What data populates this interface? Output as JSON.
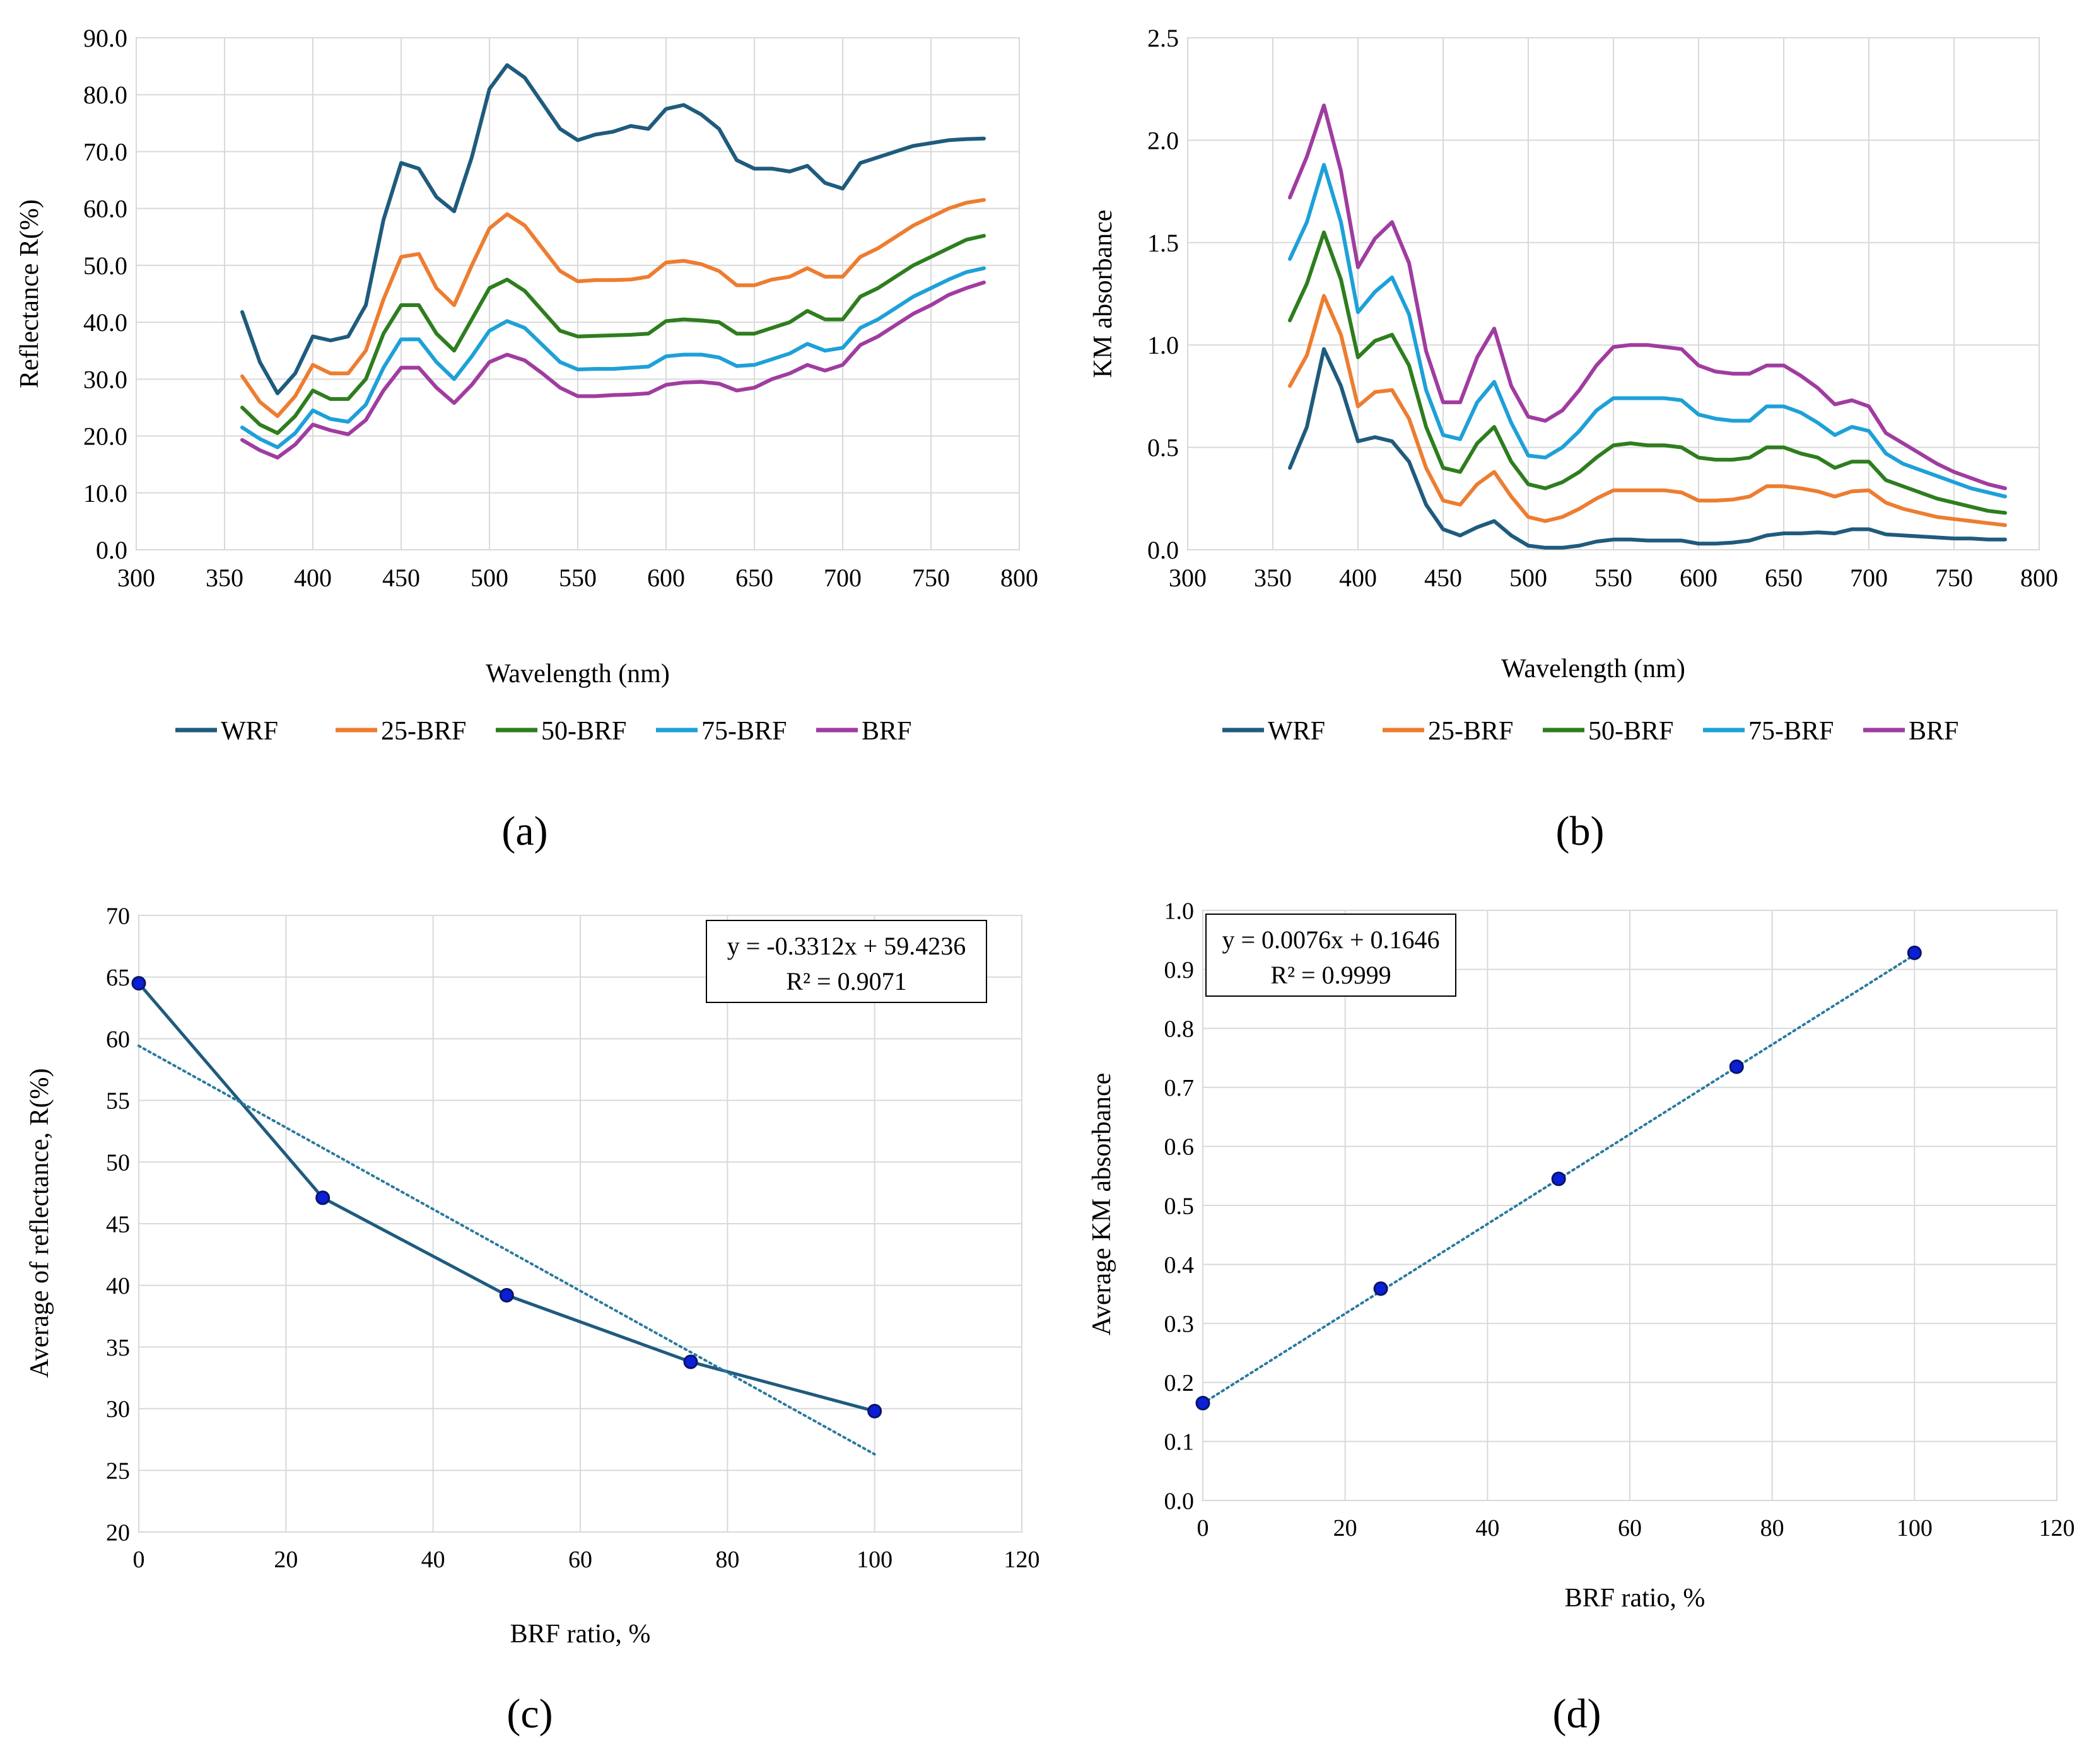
{
  "colors": {
    "WRF": "#1f5b7d",
    "25-BRF": "#ed7d31",
    "50-BRF": "#2e7d1e",
    "75-BRF": "#1ea0d8",
    "BRF": "#a03ca0",
    "marker_fill": "#0b1fd6",
    "marker_stroke": "#0a1466",
    "trend": "#2a7aa0",
    "grid": "#d9d9d9"
  },
  "chart_data": [
    {
      "id": "a",
      "type": "line",
      "panel_label": "(a)",
      "xlabel": "Wavelength (nm)",
      "ylabel": "Reflectance R(%)",
      "xlim": [
        300,
        800
      ],
      "ylim": [
        0,
        90
      ],
      "xticks": [
        300,
        350,
        400,
        450,
        500,
        550,
        600,
        650,
        700,
        750,
        800
      ],
      "yticks": [
        0,
        10,
        20,
        30,
        40,
        50,
        60,
        70,
        80,
        90
      ],
      "ytick_labels": [
        "0.0",
        "10.0",
        "20.0",
        "30.0",
        "40.0",
        "50.0",
        "60.0",
        "70.0",
        "80.0",
        "90.0"
      ],
      "legend": "bottom",
      "x": [
        360,
        370,
        380,
        390,
        400,
        410,
        420,
        430,
        440,
        450,
        460,
        470,
        480,
        490,
        500,
        510,
        520,
        530,
        540,
        550,
        560,
        570,
        580,
        590,
        600,
        610,
        620,
        630,
        640,
        650,
        660,
        670,
        680,
        690,
        700,
        710,
        720,
        730,
        740,
        750,
        760,
        770,
        780
      ],
      "series": [
        {
          "name": "WRF",
          "values": [
            41.8,
            33,
            27.5,
            31,
            37.5,
            36.8,
            37.5,
            43,
            58,
            68,
            67,
            62,
            59.5,
            69,
            81,
            85.2,
            83,
            78.5,
            74,
            72,
            73,
            73.5,
            74.5,
            74,
            77.5,
            78.2,
            76.5,
            74,
            68.5,
            67,
            67,
            66.5,
            67.5,
            64.5,
            63.5,
            68,
            69,
            70,
            71,
            71.5,
            72,
            72.2,
            72.3
          ]
        },
        {
          "name": "25-BRF",
          "values": [
            30.5,
            26,
            23.5,
            27,
            32.5,
            31,
            31,
            35,
            44,
            51.5,
            52,
            46,
            43,
            50,
            56.5,
            59,
            57,
            53,
            49,
            47.2,
            47.4,
            47.4,
            47.5,
            48,
            50.5,
            50.8,
            50.2,
            49,
            46.5,
            46.5,
            47.5,
            48,
            49.5,
            48,
            48,
            51.5,
            53,
            55,
            57,
            58.5,
            60,
            61,
            61.5
          ]
        },
        {
          "name": "50-BRF",
          "values": [
            25,
            22,
            20.5,
            23.5,
            28,
            26.5,
            26.5,
            30,
            38,
            43,
            43,
            38,
            35,
            40.5,
            46,
            47.5,
            45.5,
            42,
            38.5,
            37.5,
            37.6,
            37.7,
            37.8,
            38,
            40.2,
            40.5,
            40.3,
            40,
            38,
            38,
            39,
            40,
            42,
            40.5,
            40.5,
            44.5,
            46,
            48,
            50,
            51.5,
            53,
            54.5,
            55.2
          ]
        },
        {
          "name": "75-BRF",
          "values": [
            21.5,
            19.5,
            18,
            20.5,
            24.5,
            23,
            22.5,
            25.5,
            32,
            37,
            37,
            33,
            30,
            34,
            38.5,
            40.2,
            39,
            36,
            33,
            31.7,
            31.8,
            31.8,
            32,
            32.2,
            34,
            34.3,
            34.3,
            33.8,
            32.3,
            32.5,
            33.5,
            34.5,
            36.2,
            35,
            35.5,
            39,
            40.5,
            42.5,
            44.5,
            46,
            47.5,
            48.8,
            49.5
          ]
        },
        {
          "name": "BRF",
          "values": [
            19.3,
            17.5,
            16.2,
            18.5,
            22,
            21,
            20.3,
            22.8,
            28,
            32,
            32,
            28.5,
            25.8,
            29,
            33,
            34.3,
            33.3,
            31,
            28.5,
            27,
            27,
            27.2,
            27.3,
            27.5,
            29,
            29.4,
            29.5,
            29.2,
            28,
            28.5,
            30,
            31,
            32.5,
            31.5,
            32.5,
            36,
            37.5,
            39.5,
            41.5,
            43,
            44.8,
            46,
            47
          ]
        }
      ]
    },
    {
      "id": "b",
      "type": "line",
      "panel_label": "(b)",
      "xlabel": "Wavelength (nm)",
      "ylabel": "KM absorbance",
      "xlim": [
        300,
        800
      ],
      "ylim": [
        0,
        2.5
      ],
      "xticks": [
        300,
        350,
        400,
        450,
        500,
        550,
        600,
        650,
        700,
        750,
        800
      ],
      "yticks": [
        0,
        0.5,
        1,
        1.5,
        2,
        2.5
      ],
      "ytick_labels": [
        "0.0",
        "0.5",
        "1.0",
        "1.5",
        "2.0",
        "2.5"
      ],
      "legend": "bottom",
      "x": [
        360,
        370,
        380,
        390,
        400,
        410,
        420,
        430,
        440,
        450,
        460,
        470,
        480,
        490,
        500,
        510,
        520,
        530,
        540,
        550,
        560,
        570,
        580,
        590,
        600,
        610,
        620,
        630,
        640,
        650,
        660,
        670,
        680,
        690,
        700,
        710,
        720,
        730,
        740,
        750,
        760,
        770,
        780
      ],
      "series": [
        {
          "name": "WRF",
          "values": [
            0.4,
            0.6,
            0.98,
            0.8,
            0.53,
            0.55,
            0.53,
            0.43,
            0.22,
            0.1,
            0.07,
            0.11,
            0.14,
            0.07,
            0.02,
            0.01,
            0.01,
            0.02,
            0.04,
            0.05,
            0.05,
            0.045,
            0.045,
            0.045,
            0.03,
            0.03,
            0.035,
            0.045,
            0.07,
            0.08,
            0.08,
            0.085,
            0.08,
            0.1,
            0.1,
            0.075,
            0.07,
            0.065,
            0.06,
            0.055,
            0.055,
            0.05,
            0.05
          ]
        },
        {
          "name": "25-BRF",
          "values": [
            0.8,
            0.95,
            1.24,
            1.05,
            0.7,
            0.77,
            0.78,
            0.64,
            0.4,
            0.24,
            0.22,
            0.32,
            0.38,
            0.26,
            0.16,
            0.14,
            0.16,
            0.2,
            0.25,
            0.29,
            0.29,
            0.29,
            0.29,
            0.28,
            0.24,
            0.24,
            0.245,
            0.26,
            0.31,
            0.31,
            0.3,
            0.285,
            0.26,
            0.285,
            0.29,
            0.23,
            0.2,
            0.18,
            0.16,
            0.15,
            0.14,
            0.13,
            0.12
          ]
        },
        {
          "name": "50-BRF",
          "values": [
            1.12,
            1.3,
            1.55,
            1.32,
            0.94,
            1.02,
            1.05,
            0.9,
            0.6,
            0.4,
            0.38,
            0.52,
            0.6,
            0.43,
            0.32,
            0.3,
            0.33,
            0.38,
            0.45,
            0.51,
            0.52,
            0.51,
            0.51,
            0.5,
            0.45,
            0.44,
            0.44,
            0.45,
            0.5,
            0.5,
            0.47,
            0.45,
            0.4,
            0.43,
            0.43,
            0.34,
            0.31,
            0.28,
            0.25,
            0.23,
            0.21,
            0.19,
            0.18
          ]
        },
        {
          "name": "75-BRF",
          "values": [
            1.42,
            1.6,
            1.88,
            1.6,
            1.16,
            1.26,
            1.33,
            1.15,
            0.78,
            0.56,
            0.54,
            0.72,
            0.82,
            0.62,
            0.46,
            0.45,
            0.5,
            0.58,
            0.68,
            0.74,
            0.74,
            0.74,
            0.74,
            0.73,
            0.66,
            0.64,
            0.63,
            0.63,
            0.7,
            0.7,
            0.67,
            0.62,
            0.56,
            0.6,
            0.58,
            0.47,
            0.42,
            0.39,
            0.36,
            0.33,
            0.3,
            0.28,
            0.26
          ]
        },
        {
          "name": "BRF",
          "values": [
            1.72,
            1.92,
            2.17,
            1.85,
            1.38,
            1.52,
            1.6,
            1.4,
            0.97,
            0.72,
            0.72,
            0.94,
            1.08,
            0.8,
            0.65,
            0.63,
            0.68,
            0.78,
            0.9,
            0.99,
            1.0,
            1.0,
            0.99,
            0.98,
            0.9,
            0.87,
            0.86,
            0.86,
            0.9,
            0.9,
            0.85,
            0.79,
            0.71,
            0.73,
            0.7,
            0.57,
            0.52,
            0.47,
            0.42,
            0.38,
            0.35,
            0.32,
            0.3
          ]
        }
      ]
    },
    {
      "id": "c",
      "type": "scatter",
      "panel_label": "(c)",
      "xlabel": "BRF ratio, %",
      "ylabel": "Average of reflectance,  R(%)",
      "xlim": [
        0,
        120
      ],
      "ylim": [
        20,
        70
      ],
      "xticks": [
        0,
        20,
        40,
        60,
        80,
        100,
        120
      ],
      "yticks": [
        20,
        25,
        30,
        35,
        40,
        45,
        50,
        55,
        60,
        65,
        70
      ],
      "ytick_labels": [
        "20",
        "25",
        "30",
        "35",
        "40",
        "45",
        "50",
        "55",
        "60",
        "65",
        "70"
      ],
      "x": [
        0,
        25,
        50,
        75,
        100
      ],
      "values": [
        64.5,
        47.1,
        39.2,
        33.8,
        29.8
      ],
      "connect_points": true,
      "trendline": {
        "slope": -0.3312,
        "intercept": 59.4236,
        "x_range": [
          0,
          100
        ]
      },
      "equation": "y = -0.3312x + 59.4236",
      "r2": "R² = 0.9071",
      "annotation_position": "top-right"
    },
    {
      "id": "d",
      "type": "scatter",
      "panel_label": "(d)",
      "xlabel": "BRF ratio, %",
      "ylabel": "Average KM absorbance",
      "xlim": [
        0,
        120
      ],
      "ylim": [
        0,
        1
      ],
      "xticks": [
        0,
        20,
        40,
        60,
        80,
        100,
        120
      ],
      "yticks": [
        0,
        0.1,
        0.2,
        0.3,
        0.4,
        0.5,
        0.6,
        0.7,
        0.8,
        0.9,
        1
      ],
      "ytick_labels": [
        "0.0",
        "0.1",
        "0.2",
        "0.3",
        "0.4",
        "0.5",
        "0.6",
        "0.7",
        "0.8",
        "0.9",
        "1.0"
      ],
      "x": [
        0,
        25,
        50,
        75,
        100
      ],
      "values": [
        0.165,
        0.359,
        0.545,
        0.735,
        0.928
      ],
      "connect_points": false,
      "trendline": {
        "slope": 0.0076,
        "intercept": 0.1646,
        "x_range": [
          0,
          100
        ]
      },
      "equation": "y = 0.0076x + 0.1646",
      "r2": "R² = 0.9999",
      "annotation_position": "top-left"
    }
  ]
}
